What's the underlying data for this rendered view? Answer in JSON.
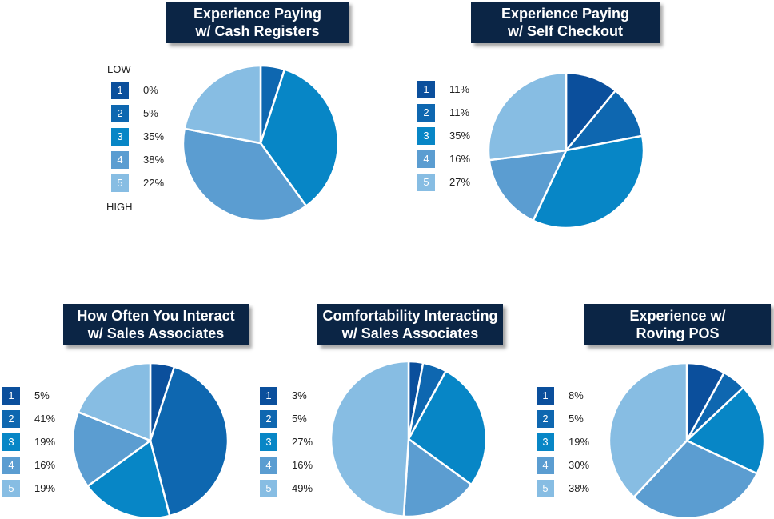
{
  "scale": {
    "low_label": "LOW",
    "high_label": "HIGH"
  },
  "legend_codes": [
    "1",
    "2",
    "3",
    "4",
    "5"
  ],
  "colors": [
    "#0b4f9c",
    "#0e67b0",
    "#0786c6",
    "#5b9dd1",
    "#87bde3"
  ],
  "chart_data": [
    {
      "type": "pie",
      "title_line1": "Experience Paying",
      "title_line2": "w/ Cash Registers",
      "labels": [
        "1",
        "2",
        "3",
        "4",
        "5"
      ],
      "values": [
        0,
        5,
        35,
        38,
        22
      ],
      "value_labels": [
        "0%",
        "5%",
        "35%",
        "38%",
        "22%"
      ]
    },
    {
      "type": "pie",
      "title_line1": "Experience Paying",
      "title_line2": "w/ Self Checkout",
      "labels": [
        "1",
        "2",
        "3",
        "4",
        "5"
      ],
      "values": [
        11,
        11,
        35,
        16,
        27
      ],
      "value_labels": [
        "11%",
        "11%",
        "35%",
        "16%",
        "27%"
      ]
    },
    {
      "type": "pie",
      "title_line1": "How Often You Interact",
      "title_line2": "w/ Sales Associates",
      "labels": [
        "1",
        "2",
        "3",
        "4",
        "5"
      ],
      "values": [
        5,
        41,
        19,
        16,
        19
      ],
      "value_labels": [
        "5%",
        "41%",
        "19%",
        "16%",
        "19%"
      ]
    },
    {
      "type": "pie",
      "title_line1": "Comfortability Interacting",
      "title_line2": "w/ Sales Associates",
      "labels": [
        "1",
        "2",
        "3",
        "4",
        "5"
      ],
      "values": [
        3,
        5,
        27,
        16,
        49
      ],
      "value_labels": [
        "3%",
        "5%",
        "27%",
        "16%",
        "49%"
      ]
    },
    {
      "type": "pie",
      "title_line1": "Experience w/",
      "title_line2": "Roving POS",
      "labels": [
        "1",
        "2",
        "3",
        "4",
        "5"
      ],
      "values": [
        8,
        5,
        19,
        30,
        38
      ],
      "value_labels": [
        "8%",
        "5%",
        "19%",
        "30%",
        "38%"
      ]
    }
  ]
}
